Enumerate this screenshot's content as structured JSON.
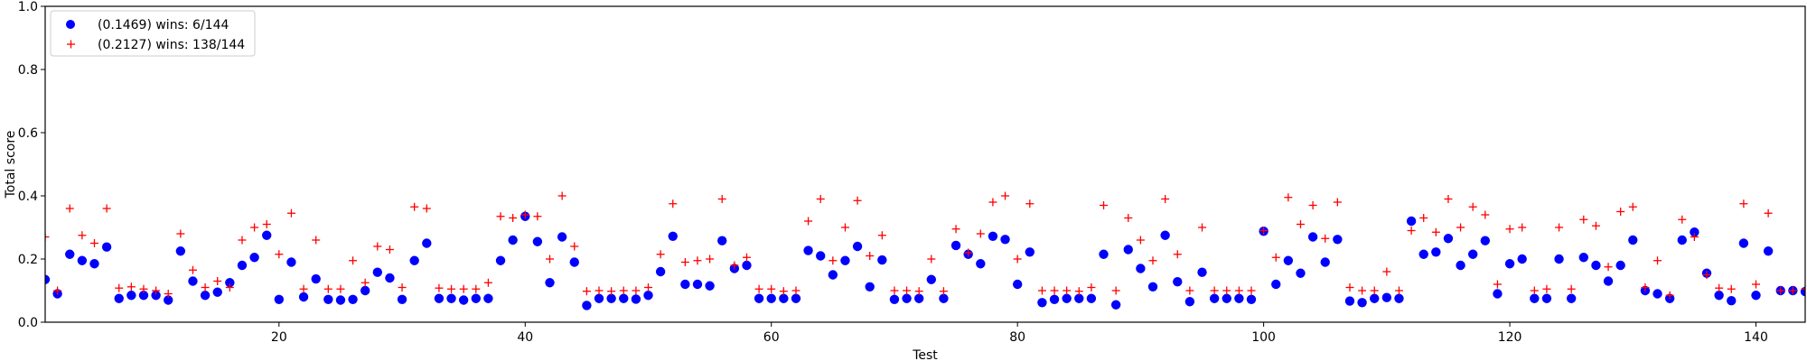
{
  "chart_data": {
    "type": "scatter",
    "xlabel": "Test",
    "ylabel": "Total score",
    "xlim": [
      1,
      144
    ],
    "ylim": [
      0,
      1
    ],
    "x_ticks": [
      20,
      40,
      60,
      80,
      100,
      120,
      140
    ],
    "y_ticks": [
      0.0,
      0.2,
      0.4,
      0.6,
      0.8,
      1.0
    ],
    "grid": false,
    "legend_position": "top-left",
    "series": [
      {
        "name": "(0.1469) wins: 6/144",
        "marker": "circle",
        "color": "#0000ff",
        "values": [
          0.135,
          0.09,
          0.215,
          0.195,
          0.185,
          0.238,
          0.075,
          0.085,
          0.085,
          0.085,
          0.07,
          0.225,
          0.13,
          0.085,
          0.095,
          0.125,
          0.18,
          0.205,
          0.275,
          0.072,
          0.19,
          0.08,
          0.137,
          0.072,
          0.07,
          0.072,
          0.1,
          0.158,
          0.14,
          0.072,
          0.195,
          0.25,
          0.075,
          0.075,
          0.07,
          0.075,
          0.075,
          0.195,
          0.26,
          0.335,
          0.255,
          0.125,
          0.27,
          0.19,
          0.053,
          0.075,
          0.075,
          0.075,
          0.073,
          0.085,
          0.16,
          0.272,
          0.12,
          0.12,
          0.115,
          0.258,
          0.17,
          0.18,
          0.075,
          0.075,
          0.075,
          0.075,
          0.227,
          0.21,
          0.15,
          0.195,
          0.24,
          0.112,
          0.197,
          0.072,
          0.075,
          0.075,
          0.135,
          0.075,
          0.243,
          0.215,
          0.185,
          0.272,
          0.262,
          0.12,
          0.222,
          0.062,
          0.072,
          0.075,
          0.075,
          0.075,
          0.215,
          0.055,
          0.23,
          0.17,
          0.112,
          0.275,
          0.128,
          0.065,
          0.158,
          0.075,
          0.075,
          0.075,
          0.072,
          0.288,
          0.12,
          0.195,
          0.155,
          0.27,
          0.19,
          0.262,
          0.067,
          0.062,
          0.075,
          0.078,
          0.075,
          0.32,
          0.215,
          0.222,
          0.265,
          0.18,
          0.215,
          0.258,
          0.09,
          0.185,
          0.2,
          0.075,
          0.075,
          0.2,
          0.075,
          0.205,
          0.18,
          0.13,
          0.18,
          0.26,
          0.1,
          0.09,
          0.075,
          0.26,
          0.285,
          0.155,
          0.085,
          0.068,
          0.25,
          0.085,
          0.225,
          0.1,
          0.1,
          0.097
        ]
      },
      {
        "name": "(0.2127) wins: 138/144",
        "marker": "plus",
        "color": "#ff0000",
        "values": [
          0.27,
          0.1,
          0.36,
          0.275,
          0.25,
          0.36,
          0.108,
          0.112,
          0.105,
          0.1,
          0.09,
          0.28,
          0.165,
          0.11,
          0.13,
          0.11,
          0.26,
          0.3,
          0.31,
          0.215,
          0.345,
          0.105,
          0.26,
          0.105,
          0.105,
          0.195,
          0.125,
          0.24,
          0.23,
          0.11,
          0.365,
          0.36,
          0.108,
          0.105,
          0.105,
          0.105,
          0.125,
          0.335,
          0.33,
          0.34,
          0.335,
          0.2,
          0.4,
          0.24,
          0.098,
          0.1,
          0.098,
          0.1,
          0.1,
          0.11,
          0.215,
          0.375,
          0.19,
          0.195,
          0.2,
          0.39,
          0.18,
          0.205,
          0.105,
          0.105,
          0.098,
          0.1,
          0.32,
          0.39,
          0.195,
          0.3,
          0.385,
          0.21,
          0.275,
          0.1,
          0.1,
          0.098,
          0.2,
          0.098,
          0.295,
          0.22,
          0.28,
          0.38,
          0.4,
          0.2,
          0.375,
          0.1,
          0.1,
          0.1,
          0.098,
          0.11,
          0.37,
          0.1,
          0.33,
          0.26,
          0.195,
          0.39,
          0.215,
          0.1,
          0.3,
          0.1,
          0.1,
          0.1,
          0.1,
          0.29,
          0.205,
          0.395,
          0.31,
          0.37,
          0.265,
          0.38,
          0.11,
          0.1,
          0.1,
          0.16,
          0.1,
          0.29,
          0.33,
          0.285,
          0.39,
          0.3,
          0.365,
          0.34,
          0.12,
          0.295,
          0.3,
          0.1,
          0.105,
          0.3,
          0.105,
          0.325,
          0.305,
          0.175,
          0.35,
          0.365,
          0.11,
          0.195,
          0.085,
          0.325,
          0.27,
          0.15,
          0.108,
          0.105,
          0.375,
          0.12,
          0.345,
          0.1,
          0.1,
          0.105
        ]
      }
    ]
  }
}
